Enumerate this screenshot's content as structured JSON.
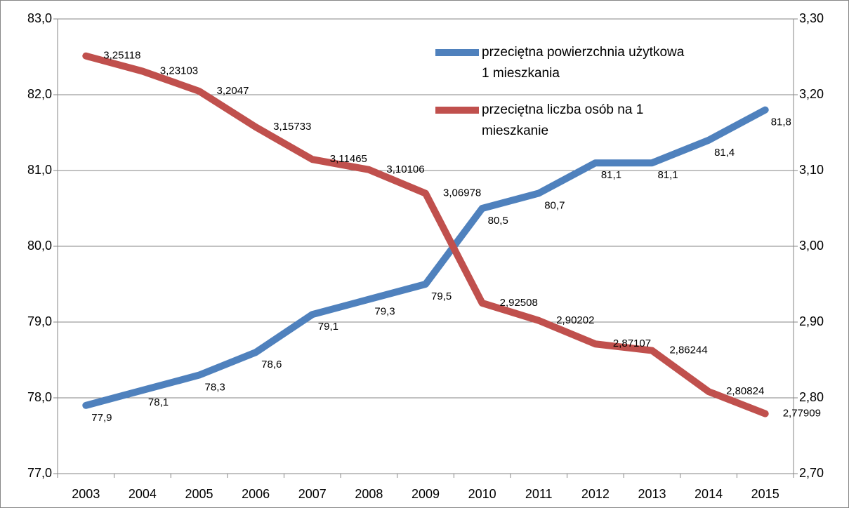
{
  "chart_data": {
    "type": "line",
    "categories": [
      "2003",
      "2004",
      "2005",
      "2006",
      "2007",
      "2008",
      "2009",
      "2010",
      "2011",
      "2012",
      "2013",
      "2014",
      "2015"
    ],
    "series": [
      {
        "name": "przeciętna powierzchnia użytkowa 1 mieszkania",
        "color": "#4f81bd",
        "axis": "y",
        "values": [
          77.9,
          78.1,
          78.3,
          78.6,
          79.1,
          79.3,
          79.5,
          80.5,
          80.7,
          81.1,
          81.1,
          81.4,
          81.8
        ],
        "value_labels": [
          "77,9",
          "78,1",
          "78,3",
          "78,6",
          "79,1",
          "79,3",
          "79,5",
          "80,5",
          "80,7",
          "81,1",
          "81,1",
          "81,4",
          "81,8"
        ]
      },
      {
        "name": "przeciętna liczba osób na 1 mieszkanie",
        "color": "#c0504d",
        "axis": "y2",
        "values": [
          3.25118,
          3.23103,
          3.2047,
          3.15733,
          3.11465,
          3.10106,
          3.06978,
          2.92508,
          2.90202,
          2.87107,
          2.86244,
          2.80824,
          2.77909
        ],
        "value_labels": [
          "3,25118",
          "3,23103",
          "3,2047",
          "3,15733",
          "3,11465",
          "3,10106",
          "3,06978",
          "2,92508",
          "2,90202",
          "2,87107",
          "2,86244",
          "2,80824",
          "2,77909"
        ]
      }
    ],
    "ylim": [
      77,
      83
    ],
    "yticks": [
      {
        "value": 77,
        "label": "77,0"
      },
      {
        "value": 78,
        "label": "78,0"
      },
      {
        "value": 79,
        "label": "79,0"
      },
      {
        "value": 80,
        "label": "80,0"
      },
      {
        "value": 81,
        "label": "81,0"
      },
      {
        "value": 82,
        "label": "82,0"
      },
      {
        "value": 83,
        "label": "83,0"
      }
    ],
    "y2lim": [
      2.7,
      3.3
    ],
    "y2ticks": [
      {
        "value": 2.7,
        "label": "2,70"
      },
      {
        "value": 2.8,
        "label": "2,80"
      },
      {
        "value": 2.9,
        "label": "2,90"
      },
      {
        "value": 3.0,
        "label": "3,00"
      },
      {
        "value": 3.1,
        "label": "3,10"
      },
      {
        "value": 3.2,
        "label": "3,20"
      },
      {
        "value": 3.3,
        "label": "3,30"
      }
    ],
    "grid": true,
    "legend": "upper right"
  }
}
